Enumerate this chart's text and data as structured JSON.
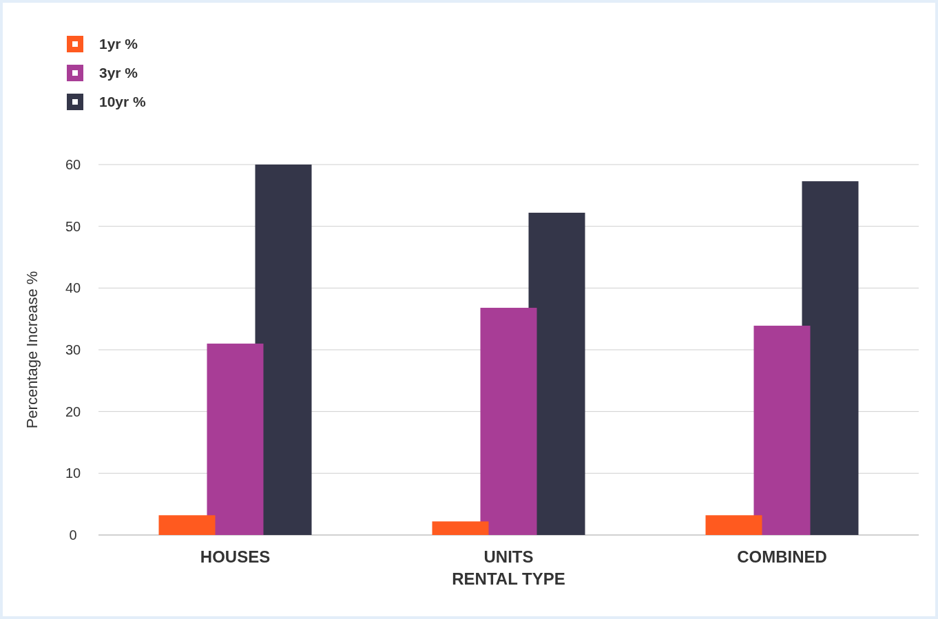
{
  "chart_data": {
    "type": "bar",
    "xlabel": "RENTAL TYPE",
    "ylabel": "Percentage Increase %",
    "categories": [
      "HOUSES",
      "UNITS",
      "COMBINED"
    ],
    "series": [
      {
        "name": "1yr %",
        "color": "#ff5a1f",
        "values": [
          3.2,
          2.2,
          3.2
        ]
      },
      {
        "name": "3yr %",
        "color": "#a83d96",
        "values": [
          31,
          36.8,
          33.9
        ]
      },
      {
        "name": "10yr %",
        "color": "#343649",
        "values": [
          60,
          52.2,
          57.3
        ]
      }
    ],
    "ylim": [
      0,
      60
    ],
    "yticks": [
      0,
      10,
      20,
      30,
      40,
      50,
      60
    ],
    "grid": "y",
    "legend": "top left"
  }
}
